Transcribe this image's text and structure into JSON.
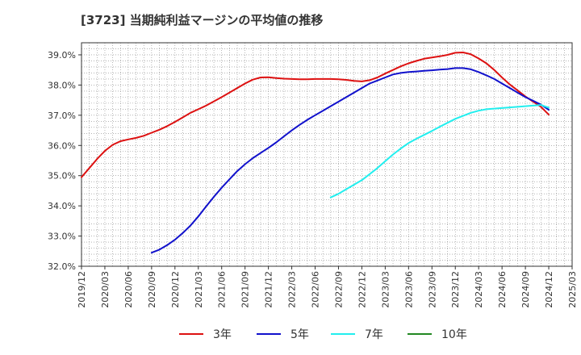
{
  "chart_data": {
    "type": "line",
    "title": "[3723]  当期純利益マージンの平均値の推移",
    "xlabel": "",
    "ylabel": "",
    "ylim": [
      32.0,
      39.4
    ],
    "y_ticks": [
      32.0,
      33.0,
      34.0,
      35.0,
      36.0,
      37.0,
      38.0,
      39.0
    ],
    "y_tick_labels": [
      "32.0%",
      "33.0%",
      "34.0%",
      "35.0%",
      "36.0%",
      "37.0%",
      "38.0%",
      "39.0%"
    ],
    "x_ticks": [
      "2019/12",
      "2020/03",
      "2020/06",
      "2020/09",
      "2020/12",
      "2021/03",
      "2021/06",
      "2021/09",
      "2021/12",
      "2022/03",
      "2022/06",
      "2022/09",
      "2022/12",
      "2023/03",
      "2023/06",
      "2023/09",
      "2023/12",
      "2024/03",
      "2024/06",
      "2024/09",
      "2024/12",
      "2025/03"
    ],
    "grid": true,
    "legend_position": "bottom",
    "series": [
      {
        "name": "3年",
        "color": "#dd1111",
        "x": [
          "2019/12",
          "2020/01",
          "2020/02",
          "2020/03",
          "2020/04",
          "2020/05",
          "2020/06",
          "2020/07",
          "2020/08",
          "2020/09",
          "2020/10",
          "2020/11",
          "2020/12",
          "2021/01",
          "2021/02",
          "2021/03",
          "2021/04",
          "2021/05",
          "2021/06",
          "2021/07",
          "2021/08",
          "2021/09",
          "2021/10",
          "2021/11",
          "2021/12",
          "2022/01",
          "2022/02",
          "2022/03",
          "2022/04",
          "2022/05",
          "2022/06",
          "2022/07",
          "2022/08",
          "2022/09",
          "2022/10",
          "2022/11",
          "2022/12",
          "2023/01",
          "2023/02",
          "2023/03",
          "2023/04",
          "2023/05",
          "2023/06",
          "2023/07",
          "2023/08",
          "2023/09",
          "2023/10",
          "2023/11",
          "2023/12",
          "2024/01",
          "2024/02",
          "2024/03",
          "2024/04",
          "2024/05",
          "2024/06",
          "2024/07",
          "2024/08",
          "2024/09",
          "2024/10",
          "2024/11",
          "2024/12"
        ],
        "values": [
          34.95,
          35.25,
          35.55,
          35.82,
          36.02,
          36.14,
          36.2,
          36.25,
          36.32,
          36.42,
          36.52,
          36.64,
          36.78,
          36.93,
          37.08,
          37.2,
          37.32,
          37.46,
          37.6,
          37.75,
          37.9,
          38.05,
          38.18,
          38.25,
          38.26,
          38.23,
          38.21,
          38.2,
          38.19,
          38.19,
          38.2,
          38.2,
          38.2,
          38.19,
          38.17,
          38.14,
          38.12,
          38.16,
          38.25,
          38.38,
          38.5,
          38.62,
          38.72,
          38.8,
          38.87,
          38.91,
          38.95,
          39.0,
          39.07,
          39.08,
          39.02,
          38.88,
          38.72,
          38.5,
          38.25,
          38.02,
          37.82,
          37.62,
          37.45,
          37.28,
          37.02
        ]
      },
      {
        "name": "5年",
        "color": "#1111cc",
        "x": [
          "2020/09",
          "2020/10",
          "2020/11",
          "2020/12",
          "2021/01",
          "2021/02",
          "2021/03",
          "2021/04",
          "2021/05",
          "2021/06",
          "2021/07",
          "2021/08",
          "2021/09",
          "2021/10",
          "2021/11",
          "2021/12",
          "2022/01",
          "2022/02",
          "2022/03",
          "2022/04",
          "2022/05",
          "2022/06",
          "2022/07",
          "2022/08",
          "2022/09",
          "2022/10",
          "2022/11",
          "2022/12",
          "2023/01",
          "2023/02",
          "2023/03",
          "2023/04",
          "2023/05",
          "2023/06",
          "2023/07",
          "2023/08",
          "2023/09",
          "2023/10",
          "2023/11",
          "2023/12",
          "2024/01",
          "2024/02",
          "2024/03",
          "2024/04",
          "2024/05",
          "2024/06",
          "2024/07",
          "2024/08",
          "2024/09",
          "2024/10",
          "2024/11",
          "2024/12"
        ],
        "values": [
          32.45,
          32.55,
          32.7,
          32.88,
          33.1,
          33.35,
          33.65,
          33.98,
          34.3,
          34.6,
          34.88,
          35.15,
          35.38,
          35.58,
          35.75,
          35.92,
          36.1,
          36.3,
          36.5,
          36.68,
          36.85,
          37.0,
          37.15,
          37.3,
          37.45,
          37.6,
          37.75,
          37.9,
          38.05,
          38.15,
          38.25,
          38.35,
          38.4,
          38.43,
          38.45,
          38.47,
          38.49,
          38.51,
          38.53,
          38.56,
          38.56,
          38.52,
          38.43,
          38.32,
          38.2,
          38.05,
          37.9,
          37.75,
          37.6,
          37.48,
          37.35,
          37.18
        ]
      },
      {
        "name": "7年",
        "color": "#22eeee",
        "x": [
          "2022/08",
          "2022/09",
          "2022/10",
          "2022/11",
          "2022/12",
          "2023/01",
          "2023/02",
          "2023/03",
          "2023/04",
          "2023/05",
          "2023/06",
          "2023/07",
          "2023/08",
          "2023/09",
          "2023/10",
          "2023/11",
          "2023/12",
          "2024/01",
          "2024/02",
          "2024/03",
          "2024/04",
          "2024/05",
          "2024/06",
          "2024/07",
          "2024/08",
          "2024/09",
          "2024/10",
          "2024/11",
          "2024/12"
        ],
        "values": [
          34.28,
          34.4,
          34.55,
          34.7,
          34.85,
          35.05,
          35.25,
          35.48,
          35.7,
          35.9,
          36.08,
          36.22,
          36.35,
          36.48,
          36.62,
          36.75,
          36.88,
          36.98,
          37.08,
          37.15,
          37.2,
          37.22,
          37.24,
          37.26,
          37.28,
          37.3,
          37.32,
          37.34,
          37.25
        ]
      },
      {
        "name": "10年",
        "color": "#228822",
        "x": [],
        "values": []
      }
    ]
  }
}
